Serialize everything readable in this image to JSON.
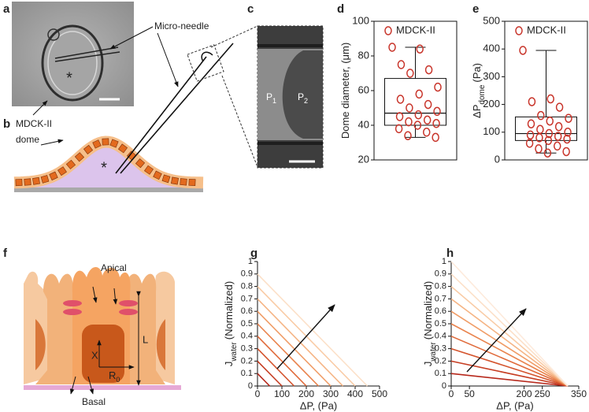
{
  "panel_labels": [
    "a",
    "b",
    "c",
    "d",
    "e",
    "f",
    "g",
    "h"
  ],
  "panel_a": {
    "label": "Micro-needle",
    "marker": "*"
  },
  "panel_b": {
    "label_lines": [
      "MDCK-II",
      "dome"
    ],
    "marker": "*"
  },
  "panel_c": {
    "p1": [
      "P",
      "1"
    ],
    "p2": [
      "P",
      "2"
    ]
  },
  "panel_f": {
    "apical": "Apical",
    "basal": "Basal",
    "length": "L",
    "position": "X",
    "radius": [
      "R",
      "0"
    ]
  },
  "chart_data": [
    {
      "type": "box",
      "ylabel": "Dome diameter, (μm)",
      "ylim": [
        20,
        100
      ],
      "yticks": [
        20,
        40,
        60,
        80,
        100
      ],
      "series": [
        {
          "name": "MDCK-II",
          "color": "#c8342a",
          "min": 33,
          "q1": 40,
          "median": 47,
          "q3": 67,
          "max": 85,
          "points": [
            85,
            84,
            75,
            72,
            70,
            62,
            58,
            55,
            52,
            50,
            48,
            46,
            45,
            43,
            42,
            41,
            40,
            38,
            36,
            34,
            33
          ]
        }
      ]
    },
    {
      "type": "box",
      "ylabel": "ΔP",
      "ylabel_sub": "dome",
      "ylabel_unit": "(Pa)",
      "ylim": [
        0,
        500
      ],
      "yticks": [
        0,
        100,
        200,
        300,
        400,
        500
      ],
      "series": [
        {
          "name": "MDCK-II",
          "color": "#c8342a",
          "min": 25,
          "q1": 70,
          "median": 95,
          "q3": 155,
          "max": 395,
          "points": [
            395,
            220,
            210,
            190,
            160,
            150,
            140,
            130,
            120,
            110,
            100,
            95,
            90,
            85,
            80,
            75,
            70,
            60,
            50,
            40,
            30,
            25
          ]
        }
      ]
    },
    {
      "type": "line",
      "ylabel": "J",
      "ylabel_sub": "water",
      "ylabel_unit": "(Normalized)",
      "xlabel": "ΔP, (Pa)",
      "xlim": [
        0,
        500
      ],
      "xticks": [
        0,
        100,
        200,
        300,
        400,
        500
      ],
      "ylim": [
        0,
        1
      ],
      "yticks": [
        0,
        0.1,
        0.2,
        0.3,
        0.4,
        0.5,
        0.6,
        0.7,
        0.8,
        0.9,
        1
      ],
      "series": [
        {
          "color": "#b7281b",
          "x": [
            0,
            50
          ],
          "values": [
            0.1,
            0
          ]
        },
        {
          "color": "#c63d22",
          "x": [
            0,
            100
          ],
          "values": [
            0.2,
            0
          ]
        },
        {
          "color": "#d4532c",
          "x": [
            0,
            150
          ],
          "values": [
            0.3,
            0
          ]
        },
        {
          "color": "#e06a3a",
          "x": [
            0,
            200
          ],
          "values": [
            0.4,
            0
          ]
        },
        {
          "color": "#e9834d",
          "x": [
            0,
            250
          ],
          "values": [
            0.5,
            0
          ]
        },
        {
          "color": "#f09c66",
          "x": [
            0,
            300
          ],
          "values": [
            0.6,
            0
          ]
        },
        {
          "color": "#f5b484",
          "x": [
            0,
            350
          ],
          "values": [
            0.7,
            0
          ]
        },
        {
          "color": "#f9cba5",
          "x": [
            0,
            400
          ],
          "values": [
            0.8,
            0
          ]
        },
        {
          "color": "#fce0c8",
          "x": [
            0,
            450
          ],
          "values": [
            0.9,
            0
          ]
        }
      ]
    },
    {
      "type": "line",
      "ylabel": "J",
      "ylabel_sub": "water",
      "ylabel_unit": "(Normalized)",
      "xlabel": "ΔP, (Pa)",
      "xlim": [
        0,
        350
      ],
      "xticks": [
        0,
        50,
        200,
        250,
        350
      ],
      "ylim": [
        0,
        1
      ],
      "yticks": [
        0,
        0.1,
        0.2,
        0.3,
        0.4,
        0.5,
        0.6,
        0.7,
        0.8,
        0.9,
        1
      ],
      "series": [
        {
          "color": "#b7281b",
          "x": [
            0,
            320
          ],
          "values": [
            0.1,
            0
          ]
        },
        {
          "color": "#c63d22",
          "x": [
            0,
            320
          ],
          "values": [
            0.2,
            0
          ]
        },
        {
          "color": "#d4532c",
          "x": [
            0,
            320
          ],
          "values": [
            0.3,
            0
          ]
        },
        {
          "color": "#e06a3a",
          "x": [
            0,
            320
          ],
          "values": [
            0.4,
            0
          ]
        },
        {
          "color": "#e9834d",
          "x": [
            0,
            320
          ],
          "values": [
            0.5,
            0
          ]
        },
        {
          "color": "#f09c66",
          "x": [
            0,
            320
          ],
          "values": [
            0.6,
            0
          ]
        },
        {
          "color": "#f5b484",
          "x": [
            0,
            320
          ],
          "values": [
            0.7,
            0
          ]
        },
        {
          "color": "#f9cba5",
          "x": [
            0,
            320
          ],
          "values": [
            0.8,
            0
          ]
        },
        {
          "color": "#fce0c8",
          "x": [
            0,
            320
          ],
          "values": [
            0.9,
            0
          ]
        },
        {
          "color": "#fdeadb",
          "x": [
            0,
            320
          ],
          "values": [
            1,
            0
          ]
        }
      ]
    }
  ]
}
